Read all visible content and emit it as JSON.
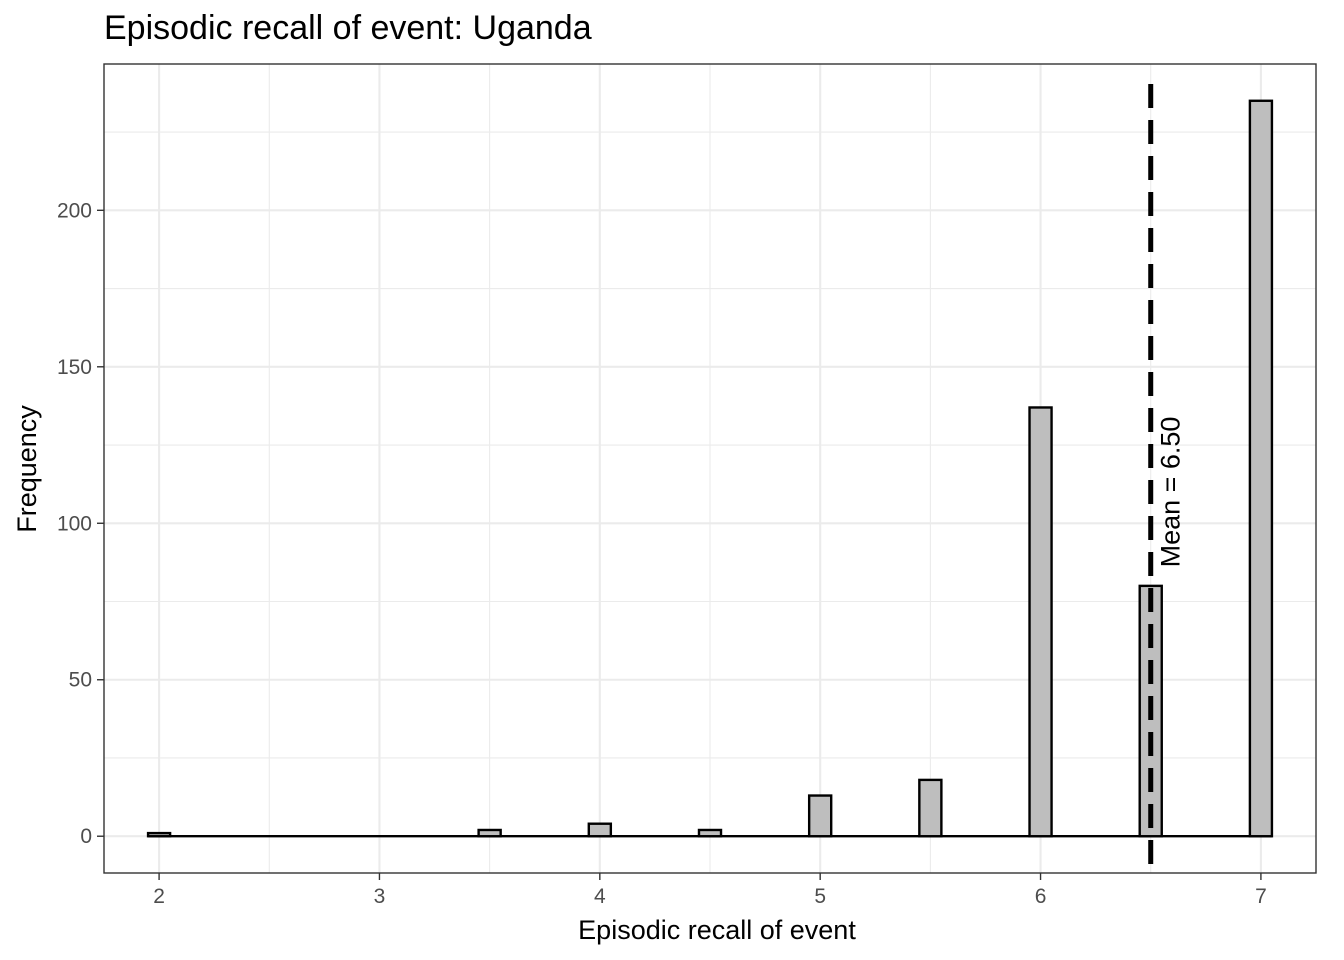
{
  "chart_data": {
    "type": "bar",
    "title": "Episodic recall of event: Uganda",
    "xlabel": "Episodic recall of event",
    "ylabel": "Frequency",
    "xlim": [
      1.75,
      7.25
    ],
    "ylim": [
      -11.75,
      246.75
    ],
    "x_ticks": [
      2,
      3,
      4,
      5,
      6,
      7
    ],
    "y_ticks": [
      0,
      50,
      100,
      150,
      200
    ],
    "bin_width": 0.1,
    "bins": [
      {
        "x": 2.0,
        "value": 1
      },
      {
        "x": 3.5,
        "value": 2
      },
      {
        "x": 4.0,
        "value": 4
      },
      {
        "x": 4.5,
        "value": 2
      },
      {
        "x": 5.0,
        "value": 13
      },
      {
        "x": 5.5,
        "value": 18
      },
      {
        "x": 6.0,
        "value": 137
      },
      {
        "x": 6.5,
        "value": 80
      },
      {
        "x": 7.0,
        "value": 235
      }
    ],
    "x_range_start": 2.0,
    "x_range_end": 7.0,
    "mean_line": {
      "value": 6.5,
      "label": "Mean = 6.50"
    },
    "grid": true,
    "bar_fill": "#bebebe",
    "bar_stroke": "#000000",
    "grid_color": "#ebebeb"
  }
}
